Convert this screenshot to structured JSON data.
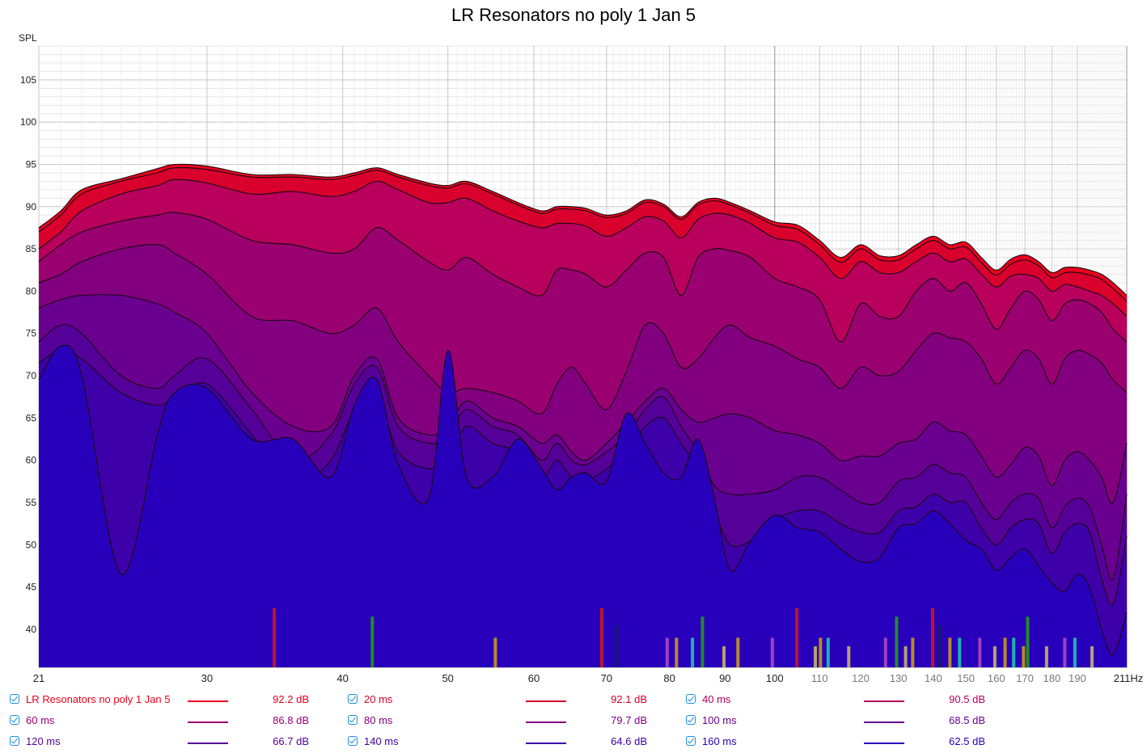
{
  "chart_data": {
    "type": "area",
    "title": "LR Resonators no poly 1 Jan 5",
    "ylabel": "SPL",
    "xunit": "Hz",
    "xscale": "log",
    "xlim": [
      21,
      211
    ],
    "ylim": [
      35.5,
      109
    ],
    "x_ticks": [
      21,
      30,
      40,
      50,
      60,
      70,
      80,
      90,
      100,
      110,
      120,
      130,
      140,
      150,
      160,
      170,
      180,
      190,
      211
    ],
    "x_tick_labels": [
      "21",
      "30",
      "40",
      "50",
      "60",
      "70",
      "80",
      "90",
      "100",
      "110",
      "120",
      "130",
      "140",
      "150",
      "160",
      "170",
      "180",
      "190",
      "211Hz"
    ],
    "y_ticks": [
      40,
      45,
      50,
      55,
      60,
      65,
      70,
      75,
      80,
      85,
      90,
      95,
      100,
      105
    ],
    "grid": true,
    "x": [
      21,
      22,
      23,
      25,
      27,
      28,
      30,
      33,
      36,
      39,
      41,
      43,
      45,
      48,
      50,
      52,
      55,
      58,
      61,
      63,
      65,
      67,
      70,
      73,
      76,
      79,
      82,
      85,
      88,
      91,
      95,
      100,
      105,
      110,
      115,
      120,
      125,
      130,
      135,
      140,
      145,
      150,
      155,
      160,
      165,
      170,
      175,
      180,
      185,
      190,
      195,
      200,
      205,
      211
    ],
    "series": [
      {
        "name": "LR Resonators no poly 1 Jan 5",
        "color": "#e8001c",
        "legend_value": "92.2 dB",
        "values": [
          87.5,
          89.5,
          92,
          93.3,
          94.5,
          95,
          94.8,
          93.8,
          93.8,
          93.5,
          94,
          94.6,
          93.8,
          92.8,
          92.5,
          93,
          91.8,
          90.5,
          89.5,
          90,
          90,
          89.8,
          89,
          89.5,
          90.8,
          90.3,
          88.8,
          90.5,
          91,
          90.5,
          89.5,
          88.2,
          87.8,
          86,
          84,
          85.5,
          84.2,
          84.2,
          85.5,
          86.5,
          85.5,
          85.8,
          84,
          82.5,
          83.8,
          84.3,
          83.5,
          82.2,
          82.8,
          82.8,
          82.5,
          82,
          81,
          79.5
        ]
      },
      {
        "name": "20 ms",
        "color": "#d9002e",
        "legend_value": "92.1 dB",
        "values": [
          87,
          89,
          91.5,
          93,
          94,
          94.6,
          94.4,
          93.5,
          93.5,
          93.2,
          93.7,
          94.3,
          93.5,
          92.5,
          92.2,
          92.7,
          91.5,
          90.2,
          89.2,
          89.7,
          89.7,
          89.5,
          88.7,
          89.2,
          90.5,
          90,
          88.5,
          90.2,
          90.7,
          90.2,
          89.2,
          87.8,
          87.3,
          85.5,
          83.4,
          85,
          83.7,
          83.7,
          85,
          86,
          85,
          85.2,
          83.4,
          81.9,
          83.2,
          83.7,
          83,
          81.6,
          82.2,
          82.2,
          81.9,
          81.4,
          80.3,
          78.8
        ]
      },
      {
        "name": "40 ms",
        "color": "#b8005c",
        "legend_value": "90.5 dB",
        "values": [
          85,
          87,
          89.5,
          91.5,
          92.5,
          93.2,
          92.8,
          91.5,
          91.8,
          91.2,
          91.8,
          93,
          92,
          90.5,
          90.5,
          91,
          89.5,
          88.3,
          87.5,
          88,
          88,
          87.7,
          86.5,
          87.5,
          88.8,
          88.3,
          86.3,
          88.5,
          89.2,
          89,
          88,
          86.3,
          85.8,
          84,
          81.5,
          83.5,
          82.2,
          82.2,
          83.5,
          84.5,
          83.5,
          83.8,
          82,
          80.5,
          81.8,
          82,
          81.5,
          80,
          80.8,
          80.5,
          80,
          79.5,
          78.5,
          77
        ]
      },
      {
        "name": "60 ms",
        "color": "#9a0070",
        "legend_value": "86.8 dB",
        "values": [
          83.5,
          85.5,
          87,
          88.3,
          89,
          89.3,
          88.5,
          86,
          85.5,
          84.5,
          85,
          87.5,
          86,
          83.5,
          82.5,
          84,
          82,
          80.5,
          79.5,
          82.5,
          82.5,
          82,
          80.5,
          82.5,
          84.5,
          84,
          79.5,
          84,
          85,
          84.8,
          84,
          81.5,
          80.5,
          79,
          74,
          78.5,
          77,
          77,
          80,
          81.5,
          80,
          81,
          78.5,
          75.5,
          78,
          80,
          79,
          76.5,
          78.5,
          79,
          78.5,
          77.5,
          75.5,
          74
        ]
      },
      {
        "name": "80 ms",
        "color": "#820080",
        "legend_value": "79.7 dB",
        "values": [
          81,
          82,
          83.5,
          85,
          85.5,
          84.5,
          82,
          77,
          76.5,
          75,
          76,
          78,
          74,
          70,
          68,
          68.5,
          68,
          67,
          65.5,
          69,
          71,
          69,
          66,
          70.5,
          76,
          75,
          71,
          72,
          74.5,
          76,
          74.5,
          73.5,
          72,
          71,
          68.5,
          71,
          70,
          70.5,
          73,
          75,
          74.5,
          74,
          72,
          69,
          71,
          73,
          72,
          69,
          72,
          73,
          72.5,
          71.5,
          69.5,
          68
        ]
      },
      {
        "name": "100 ms",
        "color": "#6a0090",
        "legend_value": "68.5 dB",
        "values": [
          78,
          79,
          79.5,
          79.5,
          78.5,
          77.5,
          75,
          68,
          64,
          64,
          70,
          72,
          65,
          63,
          64,
          67,
          65,
          64,
          62,
          63,
          61,
          60,
          62,
          64.5,
          67,
          68.5,
          66,
          64.5,
          65,
          65.5,
          65,
          63.5,
          63,
          62,
          60,
          60.5,
          60.5,
          62,
          62.5,
          64.5,
          63.5,
          63,
          60.5,
          58,
          59.5,
          61.5,
          60.5,
          57,
          60,
          61,
          60,
          58,
          55,
          62
        ]
      },
      {
        "name": "120 ms",
        "color": "#56009a",
        "legend_value": "66.7 dB",
        "values": [
          74,
          76,
          75,
          70,
          68.5,
          70,
          72,
          66,
          60,
          63,
          69,
          71,
          64,
          62,
          63,
          66,
          64,
          63,
          60,
          62,
          60,
          59.5,
          61,
          63,
          66,
          67.5,
          64,
          61,
          57,
          56,
          56,
          56.5,
          58,
          58,
          56.5,
          55,
          55,
          57.5,
          58,
          59.5,
          58.5,
          58,
          55,
          53,
          55,
          56,
          55.5,
          52,
          54.5,
          55.5,
          54.5,
          50,
          46,
          56
        ]
      },
      {
        "name": "140 ms",
        "color": "#3e00a8",
        "legend_value": "64.6 dB",
        "values": [
          71.5,
          73,
          72,
          68,
          66.5,
          67.5,
          69,
          63,
          57,
          60,
          66,
          68,
          61,
          59,
          60,
          64,
          62,
          61,
          58,
          60,
          58,
          57.5,
          59,
          61,
          64,
          65,
          62,
          59,
          54,
          50,
          50.5,
          53,
          54,
          54,
          52.5,
          51.5,
          51.5,
          54,
          54.5,
          56,
          55,
          55,
          52,
          50,
          52,
          53,
          52.5,
          49,
          51.5,
          52.5,
          51.5,
          46,
          43,
          51
        ]
      },
      {
        "name": "160 ms",
        "color": "#2800bc",
        "legend_value": "62.5 dB",
        "values": [
          69.5,
          73.5,
          70,
          46.5,
          63,
          68,
          68.5,
          62.5,
          62.5,
          58,
          66.5,
          69.5,
          59.5,
          55.5,
          73,
          58,
          58,
          62.5,
          59,
          56.5,
          58,
          58.5,
          57.5,
          65.5,
          62,
          58.5,
          58,
          62.5,
          55.5,
          47,
          50.5,
          53.5,
          52,
          51.5,
          49.5,
          48,
          48.5,
          52,
          52.5,
          54,
          52.5,
          50.5,
          49.5,
          47,
          48.5,
          49.5,
          47.5,
          45.5,
          44.5,
          46.5,
          45,
          40,
          37,
          42
        ]
      }
    ],
    "markers": [
      {
        "x": 34.6,
        "color": "#c0142b",
        "top": 42.5
      },
      {
        "x": 42.6,
        "color": "#238a2a",
        "top": 41.5
      },
      {
        "x": 55.3,
        "color": "#b8892a",
        "top": 39
      },
      {
        "x": 69.3,
        "color": "#c0142b",
        "top": 42.5
      },
      {
        "x": 71.5,
        "color": "#1a1a66",
        "top": 40.5
      },
      {
        "x": 79.6,
        "color": "#a040c0",
        "top": 39
      },
      {
        "x": 81.2,
        "color": "#b8892a",
        "top": 39
      },
      {
        "x": 84,
        "color": "#20b0b0",
        "top": 39
      },
      {
        "x": 85.8,
        "color": "#238a2a",
        "top": 41.5
      },
      {
        "x": 89.8,
        "color": "#b8a070",
        "top": 38
      },
      {
        "x": 92.5,
        "color": "#b8892a",
        "top": 39
      },
      {
        "x": 99.5,
        "color": "#a040c0",
        "top": 39
      },
      {
        "x": 104.8,
        "color": "#c0142b",
        "top": 42.5
      },
      {
        "x": 109,
        "color": "#b8a070",
        "top": 38
      },
      {
        "x": 110.2,
        "color": "#b8892a",
        "top": 39
      },
      {
        "x": 112,
        "color": "#20b0b0",
        "top": 39
      },
      {
        "x": 117,
        "color": "#b8a070",
        "top": 38
      },
      {
        "x": 126.5,
        "color": "#a040c0",
        "top": 39
      },
      {
        "x": 129.5,
        "color": "#238a2a",
        "top": 41.5
      },
      {
        "x": 132,
        "color": "#b8a070",
        "top": 38
      },
      {
        "x": 134,
        "color": "#b8892a",
        "top": 39
      },
      {
        "x": 139.8,
        "color": "#c0142b",
        "top": 42.5
      },
      {
        "x": 142,
        "color": "#1a1a66",
        "top": 40.5
      },
      {
        "x": 145,
        "color": "#b8892a",
        "top": 39
      },
      {
        "x": 148,
        "color": "#20b0b0",
        "top": 39
      },
      {
        "x": 154.5,
        "color": "#a040c0",
        "top": 39
      },
      {
        "x": 159.5,
        "color": "#b8a070",
        "top": 38
      },
      {
        "x": 163,
        "color": "#b8892a",
        "top": 39
      },
      {
        "x": 166,
        "color": "#20b0b0",
        "top": 39
      },
      {
        "x": 169.5,
        "color": "#b8892a",
        "top": 38
      },
      {
        "x": 171,
        "color": "#238a2a",
        "top": 41.5
      },
      {
        "x": 178,
        "color": "#b8a070",
        "top": 38
      },
      {
        "x": 185,
        "color": "#a040c0",
        "top": 39
      },
      {
        "x": 189,
        "color": "#20b0b0",
        "top": 39
      },
      {
        "x": 196,
        "color": "#b8a070",
        "top": 38
      }
    ]
  }
}
